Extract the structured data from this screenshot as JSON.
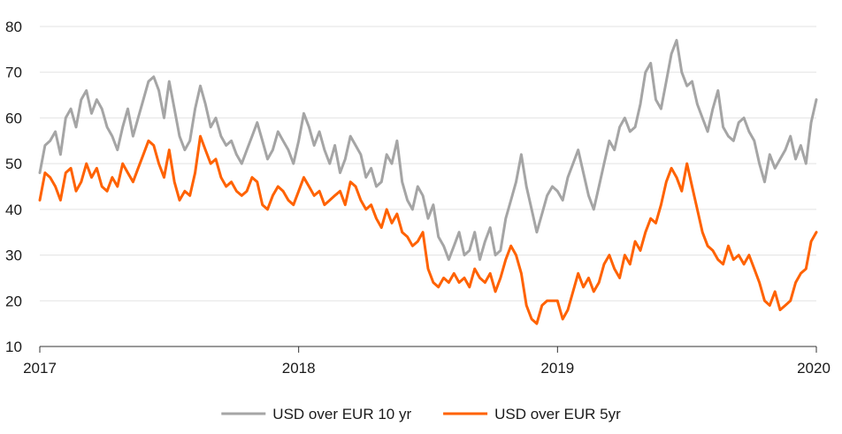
{
  "chart_data": {
    "type": "line",
    "title": "",
    "xlabel": "",
    "ylabel": "",
    "xlim": [
      2017,
      2020
    ],
    "ylim": [
      10,
      80
    ],
    "y_ticks": [
      10,
      20,
      30,
      40,
      50,
      60,
      70,
      80
    ],
    "x_ticks": [
      2017,
      2018,
      2019,
      2020
    ],
    "x_tick_labels": [
      "2017",
      "2018",
      "2019",
      "2020"
    ],
    "y_tick_labels": [
      "10",
      "20",
      "30",
      "40",
      "50",
      "60",
      "70",
      "80"
    ],
    "grid": true,
    "legend_position": "bottom-center",
    "series": [
      {
        "name": "USD over EUR 10 yr",
        "color": "#a5a5a5",
        "x": [
          2017.0,
          2017.02,
          2017.04,
          2017.06,
          2017.08,
          2017.1,
          2017.12,
          2017.14,
          2017.16,
          2017.18,
          2017.2,
          2017.22,
          2017.24,
          2017.26,
          2017.28,
          2017.3,
          2017.32,
          2017.34,
          2017.36,
          2017.38,
          2017.4,
          2017.42,
          2017.44,
          2017.46,
          2017.48,
          2017.5,
          2017.52,
          2017.54,
          2017.56,
          2017.58,
          2017.6,
          2017.62,
          2017.64,
          2017.66,
          2017.68,
          2017.7,
          2017.72,
          2017.74,
          2017.76,
          2017.78,
          2017.8,
          2017.82,
          2017.84,
          2017.86,
          2017.88,
          2017.9,
          2017.92,
          2017.94,
          2017.96,
          2017.98,
          2018.0,
          2018.02,
          2018.04,
          2018.06,
          2018.08,
          2018.1,
          2018.12,
          2018.14,
          2018.16,
          2018.18,
          2018.2,
          2018.22,
          2018.24,
          2018.26,
          2018.28,
          2018.3,
          2018.32,
          2018.34,
          2018.36,
          2018.38,
          2018.4,
          2018.42,
          2018.44,
          2018.46,
          2018.48,
          2018.5,
          2018.52,
          2018.54,
          2018.56,
          2018.58,
          2018.6,
          2018.62,
          2018.64,
          2018.66,
          2018.68,
          2018.7,
          2018.72,
          2018.74,
          2018.76,
          2018.78,
          2018.8,
          2018.82,
          2018.84,
          2018.86,
          2018.88,
          2018.9,
          2018.92,
          2018.94,
          2018.96,
          2018.98,
          2019.0,
          2019.02,
          2019.04,
          2019.06,
          2019.08,
          2019.1,
          2019.12,
          2019.14,
          2019.16,
          2019.18,
          2019.2,
          2019.22,
          2019.24,
          2019.26,
          2019.28,
          2019.3,
          2019.32,
          2019.34,
          2019.36,
          2019.38,
          2019.4,
          2019.42,
          2019.44,
          2019.46,
          2019.48,
          2019.5,
          2019.52,
          2019.54,
          2019.56,
          2019.58,
          2019.6,
          2019.62,
          2019.64,
          2019.66,
          2019.68,
          2019.7,
          2019.72,
          2019.74,
          2019.76,
          2019.78,
          2019.8,
          2019.82,
          2019.84,
          2019.86,
          2019.88,
          2019.9,
          2019.92,
          2019.94,
          2019.96,
          2019.98,
          2020.0
        ],
        "values": [
          48,
          54,
          55,
          57,
          52,
          60,
          62,
          58,
          64,
          66,
          61,
          64,
          62,
          58,
          56,
          53,
          58,
          62,
          56,
          60,
          64,
          68,
          69,
          66,
          60,
          68,
          62,
          56,
          53,
          55,
          62,
          67,
          63,
          58,
          60,
          56,
          54,
          55,
          52,
          50,
          53,
          56,
          59,
          55,
          51,
          53,
          57,
          55,
          53,
          50,
          55,
          61,
          58,
          54,
          57,
          53,
          50,
          54,
          48,
          51,
          56,
          54,
          52,
          47,
          49,
          45,
          46,
          52,
          50,
          55,
          46,
          42,
          40,
          45,
          43,
          38,
          41,
          34,
          32,
          29,
          32,
          35,
          30,
          31,
          35,
          29,
          33,
          36,
          30,
          31,
          38,
          42,
          46,
          52,
          45,
          40,
          35,
          39,
          43,
          45,
          44,
          42,
          47,
          50,
          53,
          48,
          43,
          40,
          45,
          50,
          55,
          53,
          58,
          60,
          57,
          58,
          63,
          70,
          72,
          64,
          62,
          68,
          74,
          77,
          70,
          67,
          68,
          63,
          60,
          57,
          62,
          66,
          58,
          56,
          55,
          59,
          60,
          57,
          55,
          50,
          46,
          52,
          49,
          51,
          53,
          56,
          51,
          54,
          50,
          59,
          64
        ]
      },
      {
        "name": "USD over EUR 5yr",
        "color": "#ff6200",
        "x": [
          2017.0,
          2017.02,
          2017.04,
          2017.06,
          2017.08,
          2017.1,
          2017.12,
          2017.14,
          2017.16,
          2017.18,
          2017.2,
          2017.22,
          2017.24,
          2017.26,
          2017.28,
          2017.3,
          2017.32,
          2017.34,
          2017.36,
          2017.38,
          2017.4,
          2017.42,
          2017.44,
          2017.46,
          2017.48,
          2017.5,
          2017.52,
          2017.54,
          2017.56,
          2017.58,
          2017.6,
          2017.62,
          2017.64,
          2017.66,
          2017.68,
          2017.7,
          2017.72,
          2017.74,
          2017.76,
          2017.78,
          2017.8,
          2017.82,
          2017.84,
          2017.86,
          2017.88,
          2017.9,
          2017.92,
          2017.94,
          2017.96,
          2017.98,
          2018.0,
          2018.02,
          2018.04,
          2018.06,
          2018.08,
          2018.1,
          2018.12,
          2018.14,
          2018.16,
          2018.18,
          2018.2,
          2018.22,
          2018.24,
          2018.26,
          2018.28,
          2018.3,
          2018.32,
          2018.34,
          2018.36,
          2018.38,
          2018.4,
          2018.42,
          2018.44,
          2018.46,
          2018.48,
          2018.5,
          2018.52,
          2018.54,
          2018.56,
          2018.58,
          2018.6,
          2018.62,
          2018.64,
          2018.66,
          2018.68,
          2018.7,
          2018.72,
          2018.74,
          2018.76,
          2018.78,
          2018.8,
          2018.82,
          2018.84,
          2018.86,
          2018.88,
          2018.9,
          2018.92,
          2018.94,
          2018.96,
          2018.98,
          2019.0,
          2019.02,
          2019.04,
          2019.06,
          2019.08,
          2019.1,
          2019.12,
          2019.14,
          2019.16,
          2019.18,
          2019.2,
          2019.22,
          2019.24,
          2019.26,
          2019.28,
          2019.3,
          2019.32,
          2019.34,
          2019.36,
          2019.38,
          2019.4,
          2019.42,
          2019.44,
          2019.46,
          2019.48,
          2019.5,
          2019.52,
          2019.54,
          2019.56,
          2019.58,
          2019.6,
          2019.62,
          2019.64,
          2019.66,
          2019.68,
          2019.7,
          2019.72,
          2019.74,
          2019.76,
          2019.78,
          2019.8,
          2019.82,
          2019.84,
          2019.86,
          2019.88,
          2019.9,
          2019.92,
          2019.94,
          2019.96,
          2019.98,
          2020.0
        ],
        "values": [
          42,
          48,
          47,
          45,
          42,
          48,
          49,
          44,
          46,
          50,
          47,
          49,
          45,
          44,
          47,
          45,
          50,
          48,
          46,
          49,
          52,
          55,
          54,
          50,
          47,
          53,
          46,
          42,
          44,
          43,
          48,
          56,
          53,
          50,
          51,
          47,
          45,
          46,
          44,
          43,
          44,
          47,
          46,
          41,
          40,
          43,
          45,
          44,
          42,
          41,
          44,
          47,
          45,
          43,
          44,
          41,
          42,
          43,
          44,
          41,
          46,
          45,
          42,
          40,
          41,
          38,
          36,
          40,
          37,
          39,
          35,
          34,
          32,
          33,
          35,
          27,
          24,
          23,
          25,
          24,
          26,
          24,
          25,
          23,
          27,
          25,
          24,
          26,
          22,
          25,
          29,
          32,
          30,
          26,
          19,
          16,
          15,
          19,
          20,
          20,
          20,
          16,
          18,
          22,
          26,
          23,
          25,
          22,
          24,
          28,
          30,
          27,
          25,
          30,
          28,
          33,
          31,
          35,
          38,
          37,
          41,
          46,
          49,
          47,
          44,
          50,
          45,
          40,
          35,
          32,
          31,
          29,
          28,
          32,
          29,
          30,
          28,
          30,
          27,
          24,
          20,
          19,
          22,
          18,
          19,
          20,
          24,
          26,
          27,
          33,
          35
        ]
      }
    ]
  }
}
